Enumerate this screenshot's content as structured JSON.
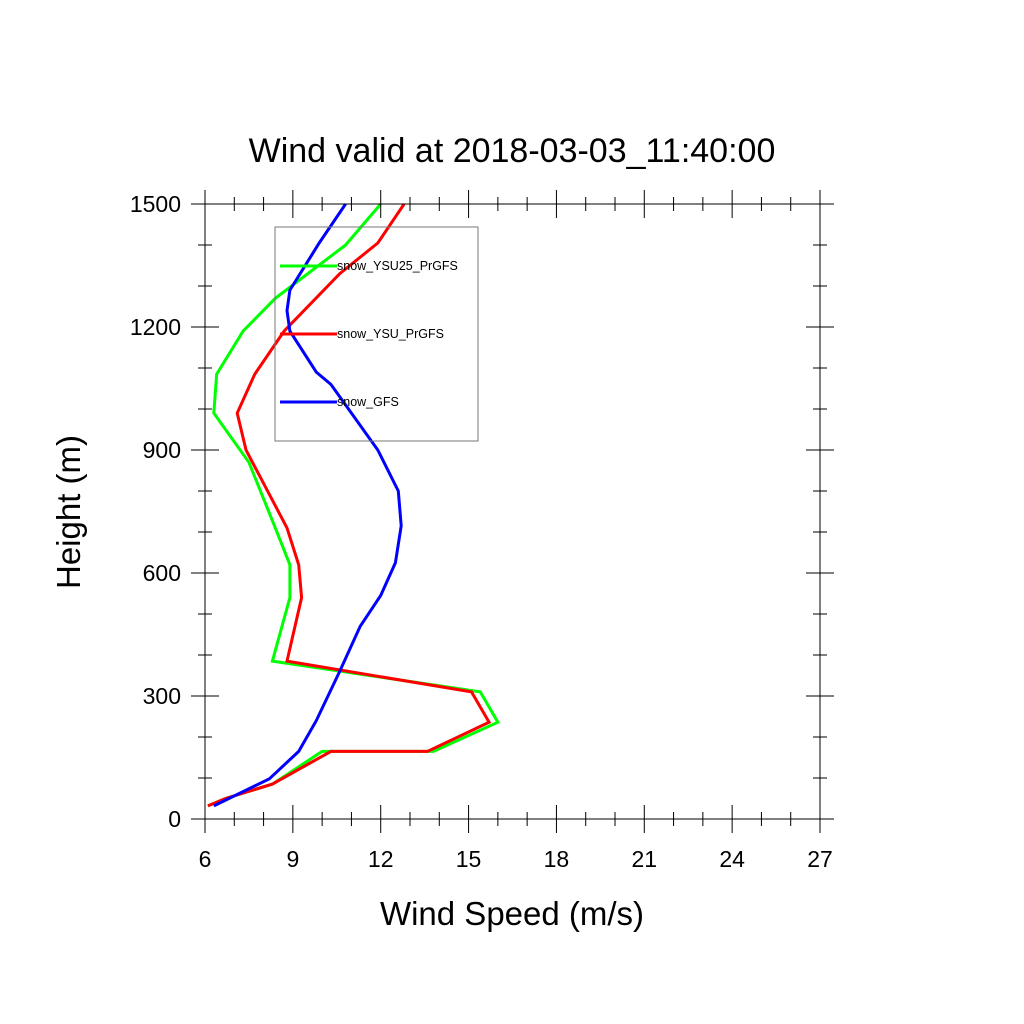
{
  "chart_data": {
    "type": "line",
    "title": "Wind valid at 2018-03-03_11:40:00",
    "xlabel": "Wind Speed (m/s)",
    "ylabel": "Height (m)",
    "xlim": [
      6,
      27
    ],
    "ylim": [
      0,
      1500
    ],
    "xticks": [
      6,
      9,
      12,
      15,
      18,
      21,
      24,
      27
    ],
    "yticks": [
      0,
      300,
      600,
      900,
      1200,
      1500
    ],
    "xminor_step": 1,
    "yminor_step": 100,
    "grid": false,
    "legend_position": "top-left",
    "series": [
      {
        "name": "snow_YSU25_PrGFS",
        "color": "#00ff00",
        "points": [
          [
            6.1,
            32
          ],
          [
            6.7,
            50
          ],
          [
            8.3,
            85
          ],
          [
            10.0,
            165
          ],
          [
            13.8,
            165
          ],
          [
            16.0,
            236
          ],
          [
            15.4,
            310
          ],
          [
            8.3,
            385
          ],
          [
            8.9,
            540
          ],
          [
            8.9,
            620
          ],
          [
            8.4,
            710
          ],
          [
            7.5,
            870
          ],
          [
            6.3,
            990
          ],
          [
            6.4,
            1085
          ],
          [
            7.3,
            1190
          ],
          [
            8.4,
            1270
          ],
          [
            10.8,
            1400
          ],
          [
            12.0,
            1500
          ]
        ]
      },
      {
        "name": "snow_YSU_PrGFS",
        "color": "#ff0000",
        "points": [
          [
            6.1,
            32
          ],
          [
            6.7,
            50
          ],
          [
            8.3,
            85
          ],
          [
            10.3,
            165
          ],
          [
            13.6,
            165
          ],
          [
            15.7,
            236
          ],
          [
            15.1,
            310
          ],
          [
            8.8,
            385
          ],
          [
            9.3,
            540
          ],
          [
            9.2,
            620
          ],
          [
            8.8,
            710
          ],
          [
            7.4,
            900
          ],
          [
            7.1,
            990
          ],
          [
            7.7,
            1085
          ],
          [
            8.7,
            1190
          ],
          [
            10.6,
            1330
          ],
          [
            11.9,
            1405
          ],
          [
            12.8,
            1500
          ]
        ]
      },
      {
        "name": "snow_GFS",
        "color": "#0000ff",
        "points": [
          [
            6.3,
            32
          ],
          [
            8.2,
            98
          ],
          [
            9.2,
            165
          ],
          [
            9.8,
            240
          ],
          [
            10.6,
            360
          ],
          [
            11.3,
            470
          ],
          [
            12.0,
            545
          ],
          [
            12.5,
            625
          ],
          [
            12.7,
            715
          ],
          [
            12.6,
            800
          ],
          [
            11.9,
            900
          ],
          [
            10.9,
            1000
          ],
          [
            10.3,
            1060
          ],
          [
            9.8,
            1090
          ],
          [
            8.9,
            1190
          ],
          [
            8.8,
            1240
          ],
          [
            8.9,
            1290
          ],
          [
            9.9,
            1405
          ],
          [
            10.8,
            1500
          ]
        ]
      }
    ]
  }
}
